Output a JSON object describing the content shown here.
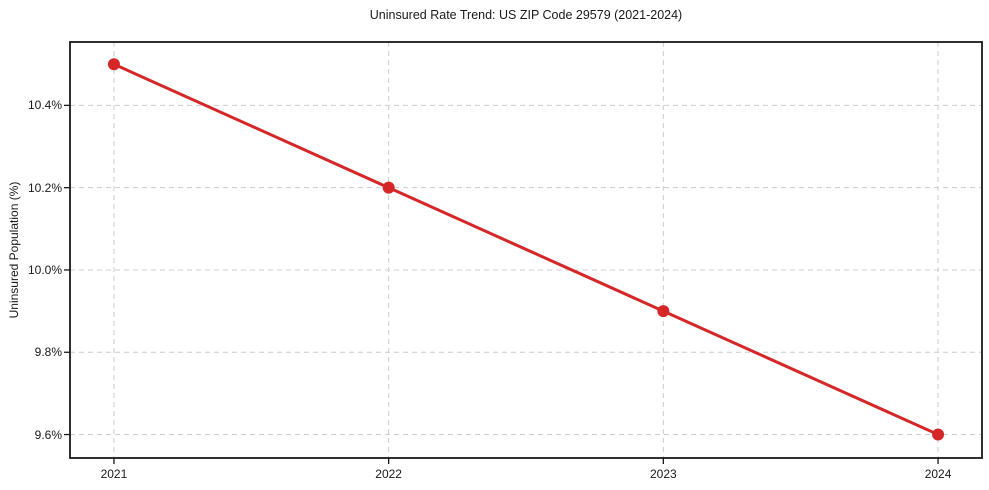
{
  "chart_data": {
    "type": "line",
    "title": "Uninsured Rate Trend: US ZIP Code 29579 (2021-2024)",
    "xlabel": "",
    "ylabel": "Uninsured Population (%)",
    "x": [
      2021,
      2022,
      2023,
      2024
    ],
    "series": [
      {
        "name": "Uninsured rate",
        "values": [
          10.5,
          10.2,
          9.9,
          9.6
        ]
      }
    ],
    "x_tick_labels": [
      "2021",
      "2022",
      "2023",
      "2024"
    ],
    "y_ticks": [
      9.6,
      9.8,
      10.0,
      10.2,
      10.4
    ],
    "y_tick_labels": [
      "9.6%",
      "9.8%",
      "10.0%",
      "10.2%",
      "10.4%"
    ],
    "xlim": [
      2020.84,
      2024.16
    ],
    "ylim": [
      9.543,
      10.554
    ],
    "grid": true,
    "grid_style": "dashed",
    "legend": "none",
    "line_color": "#d62728",
    "marker": "circle",
    "marker_radius": 6,
    "line_width": 3,
    "grid_color": "#cccccc",
    "spine_color": "#1a1a1a",
    "background_color": "#ffffff"
  }
}
